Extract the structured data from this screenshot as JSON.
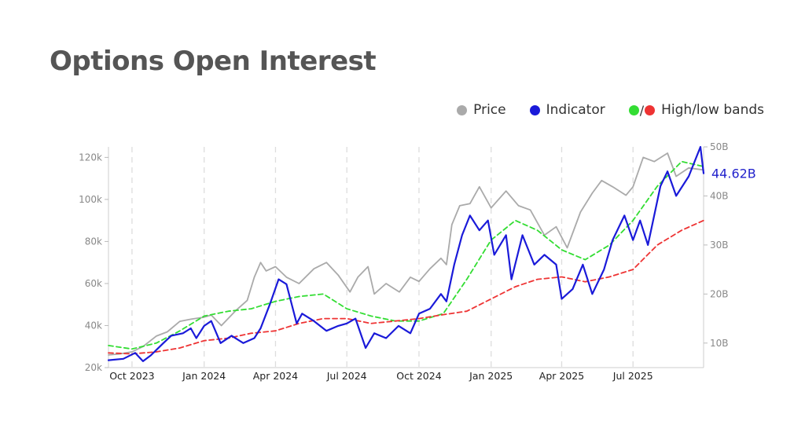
{
  "title": "Options Open Interest",
  "legend": {
    "price_label": "Price",
    "indicator_label": "Indicator",
    "bands_label": "High/low bands",
    "price_color": "#aaaaaa",
    "indicator_color": "#1a1ad9",
    "high_color": "#33dd33",
    "low_color": "#ee3333"
  },
  "chart_data": {
    "type": "line",
    "x_range": [
      "2023-09-01",
      "2025-09-29"
    ],
    "x_ticks": [
      {
        "date": "2023-10-01",
        "label": "Oct 2023"
      },
      {
        "date": "2024-01-01",
        "label": "Jan 2024"
      },
      {
        "date": "2024-04-01",
        "label": "Apr 2024"
      },
      {
        "date": "2024-07-01",
        "label": "Jul 2024"
      },
      {
        "date": "2024-10-01",
        "label": "Oct 2024"
      },
      {
        "date": "2025-01-01",
        "label": "Jan 2025"
      },
      {
        "date": "2025-04-01",
        "label": "Apr 2025"
      },
      {
        "date": "2025-07-01",
        "label": "Jul 2025"
      }
    ],
    "left_axis": {
      "min": 20000,
      "max": 125000,
      "ticks": [
        {
          "value": 20000,
          "label": "20k"
        },
        {
          "value": 40000,
          "label": "40k"
        },
        {
          "value": 60000,
          "label": "60k"
        },
        {
          "value": 80000,
          "label": "80k"
        },
        {
          "value": 100000,
          "label": "100k"
        },
        {
          "value": 120000,
          "label": "120k"
        }
      ]
    },
    "right_axis": {
      "min": 5,
      "max": 50,
      "ticks": [
        {
          "value": 10,
          "label": "10B"
        },
        {
          "value": 20,
          "label": "20B"
        },
        {
          "value": 30,
          "label": "30B"
        },
        {
          "value": 40,
          "label": "40B"
        },
        {
          "value": 50,
          "label": "50B"
        }
      ]
    },
    "last_value_label": "44.62B",
    "grid": {
      "vertical_dashed": true,
      "horizontal": false
    },
    "series": [
      {
        "name": "Price",
        "axis": "left",
        "color": "#aaaaaa",
        "style": "solid",
        "x": [
          "2023-09-01",
          "2023-09-15",
          "2023-10-01",
          "2023-10-15",
          "2023-11-01",
          "2023-11-15",
          "2023-12-01",
          "2023-12-15",
          "2024-01-01",
          "2024-01-10",
          "2024-01-23",
          "2024-02-10",
          "2024-02-25",
          "2024-03-05",
          "2024-03-13",
          "2024-03-20",
          "2024-04-01",
          "2024-04-15",
          "2024-05-01",
          "2024-05-20",
          "2024-06-05",
          "2024-06-20",
          "2024-07-05",
          "2024-07-15",
          "2024-07-28",
          "2024-08-05",
          "2024-08-20",
          "2024-09-06",
          "2024-09-20",
          "2024-10-01",
          "2024-10-15",
          "2024-10-29",
          "2024-11-05",
          "2024-11-12",
          "2024-11-22",
          "2024-12-05",
          "2024-12-17",
          "2025-01-01",
          "2025-01-20",
          "2025-02-05",
          "2025-02-20",
          "2025-03-10",
          "2025-03-25",
          "2025-04-08",
          "2025-04-25",
          "2025-05-10",
          "2025-05-22",
          "2025-06-05",
          "2025-06-22",
          "2025-07-01",
          "2025-07-14",
          "2025-07-28",
          "2025-08-14",
          "2025-08-25",
          "2025-09-10",
          "2025-09-29"
        ],
        "values": [
          26000,
          26500,
          27500,
          30000,
          35000,
          37000,
          42000,
          43000,
          44000,
          45000,
          40000,
          47000,
          52000,
          63000,
          70000,
          66000,
          68000,
          63000,
          60000,
          67000,
          70000,
          64000,
          56000,
          63000,
          68000,
          55000,
          60000,
          56000,
          63000,
          61000,
          67000,
          72000,
          69000,
          88000,
          97000,
          98000,
          106000,
          96000,
          104000,
          97000,
          95000,
          83000,
          87000,
          77000,
          94000,
          103000,
          109000,
          106000,
          102000,
          106000,
          120000,
          118000,
          122000,
          111000,
          115000,
          114000
        ]
      },
      {
        "name": "Indicator",
        "axis": "right",
        "color": "#1a1ad9",
        "style": "solid",
        "x": [
          "2023-09-01",
          "2023-09-20",
          "2023-10-05",
          "2023-10-15",
          "2023-10-25",
          "2023-11-10",
          "2023-11-20",
          "2023-12-05",
          "2023-12-15",
          "2023-12-22",
          "2024-01-01",
          "2024-01-10",
          "2024-01-22",
          "2024-02-05",
          "2024-02-20",
          "2024-03-05",
          "2024-03-13",
          "2024-03-25",
          "2024-04-05",
          "2024-04-15",
          "2024-04-28",
          "2024-05-05",
          "2024-05-20",
          "2024-06-05",
          "2024-06-20",
          "2024-07-01",
          "2024-07-12",
          "2024-07-25",
          "2024-08-05",
          "2024-08-20",
          "2024-09-05",
          "2024-09-20",
          "2024-10-01",
          "2024-10-15",
          "2024-10-29",
          "2024-11-05",
          "2024-11-15",
          "2024-11-25",
          "2024-12-05",
          "2024-12-17",
          "2024-12-28",
          "2025-01-05",
          "2025-01-20",
          "2025-01-27",
          "2025-02-10",
          "2025-02-25",
          "2025-03-10",
          "2025-03-25",
          "2025-04-01",
          "2025-04-15",
          "2025-04-28",
          "2025-05-10",
          "2025-05-25",
          "2025-06-05",
          "2025-06-20",
          "2025-07-01",
          "2025-07-10",
          "2025-07-20",
          "2025-08-05",
          "2025-08-14",
          "2025-08-25",
          "2025-09-10",
          "2025-09-25",
          "2025-09-29"
        ],
        "values": [
          6.5,
          6.8,
          8,
          6.3,
          7.5,
          10,
          11.5,
          12,
          13,
          11,
          13.5,
          14.5,
          10,
          11.5,
          10,
          11,
          13,
          18,
          23,
          22,
          14,
          16,
          14.5,
          12.5,
          13.5,
          14,
          15,
          9,
          12,
          11,
          13.5,
          12,
          16,
          17,
          20,
          18.5,
          26,
          32,
          36,
          33,
          35,
          28,
          32,
          23,
          32,
          26,
          28,
          26,
          19,
          21,
          26,
          20,
          25,
          31,
          36,
          31,
          35,
          30,
          42,
          45,
          40,
          44,
          50,
          44.62
        ]
      },
      {
        "name": "High band",
        "axis": "right",
        "color": "#33dd33",
        "style": "dashed",
        "x": [
          "2023-09-01",
          "2023-10-01",
          "2023-11-01",
          "2023-12-01",
          "2024-01-01",
          "2024-02-01",
          "2024-03-01",
          "2024-04-01",
          "2024-05-01",
          "2024-06-01",
          "2024-07-01",
          "2024-08-01",
          "2024-09-01",
          "2024-10-01",
          "2024-11-01",
          "2024-12-01",
          "2025-01-01",
          "2025-02-01",
          "2025-03-01",
          "2025-04-01",
          "2025-05-01",
          "2025-06-01",
          "2025-07-01",
          "2025-08-01",
          "2025-09-01",
          "2025-09-29"
        ],
        "values": [
          9.5,
          8.8,
          10,
          12.5,
          15.5,
          16.5,
          17,
          18.5,
          19.5,
          20,
          17,
          15.5,
          14.5,
          14.5,
          16,
          23,
          31,
          35,
          33,
          29,
          27,
          30,
          35,
          42,
          47,
          46
        ]
      },
      {
        "name": "Low band",
        "axis": "right",
        "color": "#ee3333",
        "style": "dashed",
        "x": [
          "2023-09-01",
          "2023-10-01",
          "2023-11-01",
          "2023-12-01",
          "2024-01-01",
          "2024-02-01",
          "2024-03-01",
          "2024-04-01",
          "2024-05-01",
          "2024-06-01",
          "2024-07-01",
          "2024-08-01",
          "2024-09-01",
          "2024-10-01",
          "2024-11-01",
          "2024-12-01",
          "2025-01-01",
          "2025-02-01",
          "2025-03-01",
          "2025-04-01",
          "2025-05-01",
          "2025-06-01",
          "2025-07-01",
          "2025-08-01",
          "2025-09-01",
          "2025-09-29"
        ],
        "values": [
          8,
          7.8,
          8.2,
          9,
          10.5,
          11,
          12,
          12.5,
          14,
          15,
          15,
          14,
          14.5,
          15,
          15.8,
          16.5,
          19,
          21.5,
          23,
          23.5,
          22.5,
          23.5,
          25,
          30,
          33,
          35
        ]
      }
    ]
  }
}
